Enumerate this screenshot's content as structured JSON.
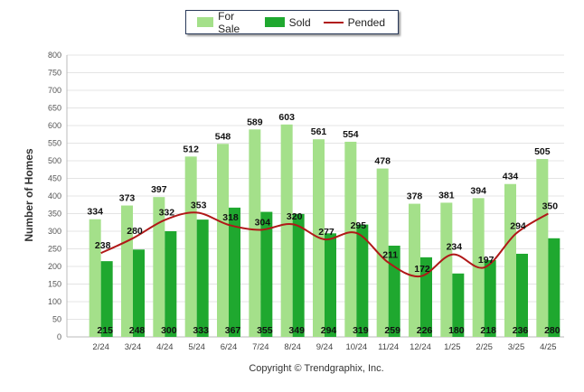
{
  "chart_data": {
    "type": "bar",
    "ylabel": "Number of Homes",
    "ylim": [
      0,
      800
    ],
    "yticks": [
      "0",
      "50",
      "100",
      "150",
      "200",
      "250",
      "300",
      "350",
      "400",
      "450",
      "500",
      "550",
      "600",
      "650",
      "700",
      "750",
      "800"
    ],
    "categories": [
      "2/24",
      "3/24",
      "4/24",
      "5/24",
      "6/24",
      "7/24",
      "8/24",
      "9/24",
      "10/24",
      "11/24",
      "12/24",
      "1/25",
      "2/25",
      "3/25",
      "4/25"
    ],
    "series": [
      {
        "name": "For Sale",
        "type": "bar",
        "color": "#a4e08a",
        "values": [
          334,
          373,
          397,
          512,
          548,
          589,
          603,
          561,
          554,
          478,
          378,
          381,
          394,
          434,
          505
        ]
      },
      {
        "name": "Sold",
        "type": "bar",
        "color": "#1fa82f",
        "values": [
          215,
          248,
          300,
          333,
          367,
          355,
          349,
          294,
          319,
          259,
          226,
          180,
          218,
          236,
          280
        ]
      },
      {
        "name": "Pended",
        "type": "line",
        "color": "#b01818",
        "values": [
          238,
          280,
          332,
          353,
          318,
          304,
          320,
          277,
          295,
          211,
          172,
          234,
          197,
          294,
          350
        ]
      }
    ],
    "grid": true,
    "legend_position": "top-center"
  },
  "copyright": "Copyright © Trendgraphix, Inc."
}
